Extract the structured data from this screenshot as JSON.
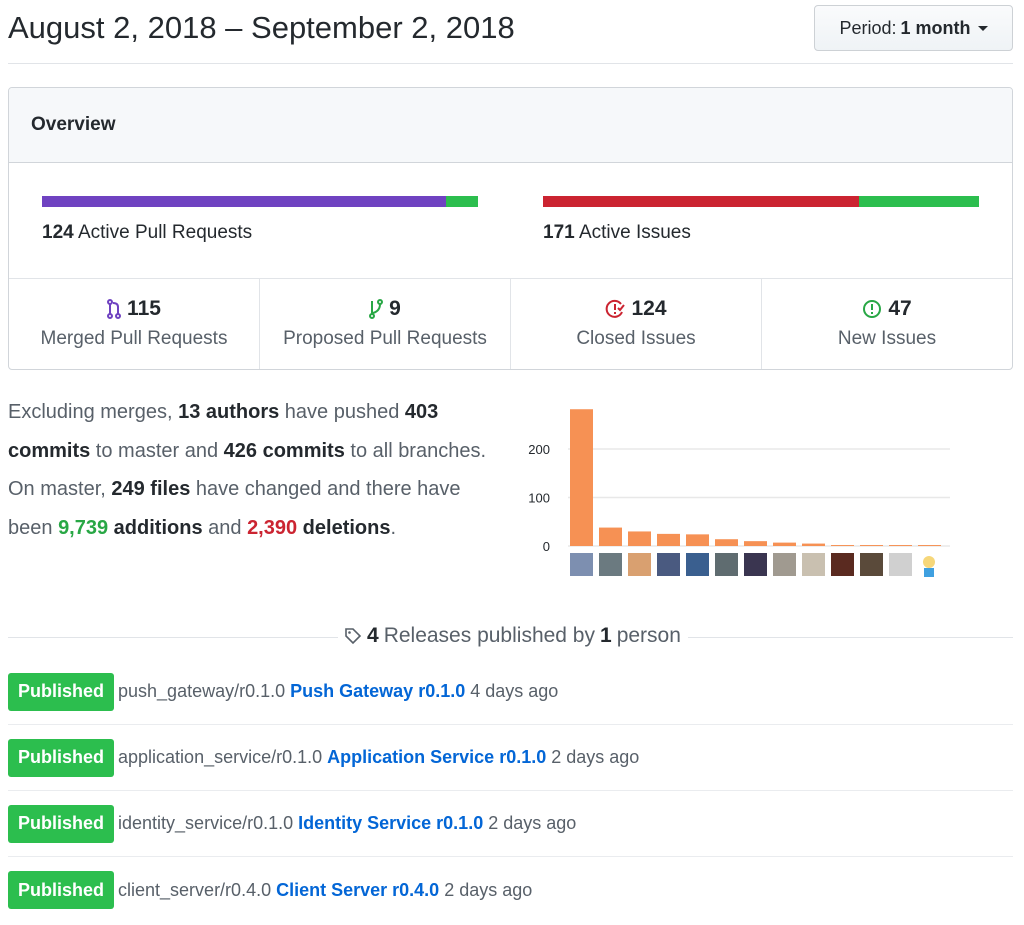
{
  "header": {
    "title": "August 2, 2018 – September 2, 2018",
    "period_label": "Period:",
    "period_value": "1 month"
  },
  "overview": {
    "title": "Overview",
    "pull_requests": {
      "count": "124",
      "label": "Active Pull Requests",
      "merged_fraction": 0.927,
      "colors": [
        "#6f42c1",
        "#2cbe4e"
      ]
    },
    "issues": {
      "count": "171",
      "label": "Active Issues",
      "closed_fraction": 0.725,
      "colors": [
        "#cb2431",
        "#2cbe4e"
      ]
    },
    "stats": [
      {
        "icon": "git-merge-icon",
        "count": "115",
        "label": "Merged Pull Requests",
        "color": "#6f42c1"
      },
      {
        "icon": "git-pull-request-icon",
        "count": "9",
        "label": "Proposed Pull Requests",
        "color": "#28a745"
      },
      {
        "icon": "issue-closed-icon",
        "count": "124",
        "label": "Closed Issues",
        "color": "#cb2431"
      },
      {
        "icon": "issue-opened-icon",
        "count": "47",
        "label": "New Issues",
        "color": "#28a745"
      }
    ]
  },
  "summary": {
    "t1": "Excluding merges, ",
    "authors": "13 authors",
    "t2": " have pushed ",
    "commits_master": "403 commits",
    "t3": " to master and ",
    "commits_all": "426 commits",
    "t4": " to all branches. On master, ",
    "files": "249 files",
    "t5": " have changed and there have been ",
    "additions": "9,739",
    "t6": " additions",
    "t7": " and ",
    "deletions": "2,390",
    "t8": " deletions",
    "t9": "."
  },
  "chart_data": {
    "type": "bar",
    "categories": [
      "author 1",
      "author 2",
      "author 3",
      "author 4",
      "author 5",
      "author 6",
      "author 7",
      "author 8",
      "author 9",
      "author 10",
      "author 11",
      "author 12",
      "author 13"
    ],
    "values": [
      282,
      38,
      30,
      25,
      24,
      14,
      10,
      7,
      5,
      2,
      2,
      2,
      2
    ],
    "yticks": [
      0,
      100,
      200
    ],
    "ylim": [
      0,
      282
    ],
    "grid": true,
    "bar_color": "#f69154",
    "x_tick_marks": "avatars"
  },
  "releases": {
    "count": "4",
    "text1": "Releases published by",
    "people": "1",
    "text2": "person",
    "items": [
      {
        "badge": "Published",
        "tag": "push_gateway/r0.1.0",
        "name": "Push Gateway r0.1.0",
        "time": "4 days ago"
      },
      {
        "badge": "Published",
        "tag": "application_service/r0.1.0",
        "name": "Application Service r0.1.0",
        "time": "2 days ago"
      },
      {
        "badge": "Published",
        "tag": "identity_service/r0.1.0",
        "name": "Identity Service r0.1.0",
        "time": "2 days ago"
      },
      {
        "badge": "Published",
        "tag": "client_server/r0.4.0",
        "name": "Client Server r0.4.0",
        "time": "2 days ago"
      }
    ]
  }
}
